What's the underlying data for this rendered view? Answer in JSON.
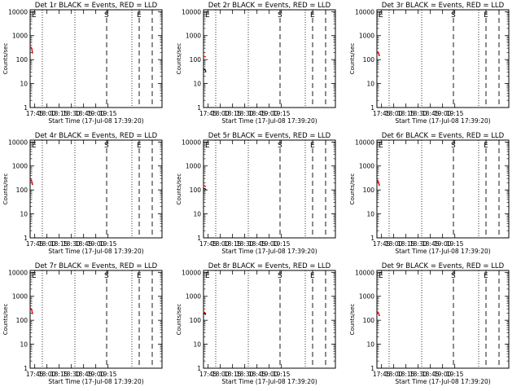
{
  "chart_data": [
    {
      "type": "line",
      "title": "Det 1r BLACK = Events, RED = LLD",
      "xlabel": "Start Time (17-Jul-08 17:39:20)",
      "ylabel": "Counts/sec",
      "xticks": [
        "17:45",
        "18:00",
        "18:15",
        "18:30",
        "18:45",
        "19:00",
        "19:15"
      ],
      "yticks": [
        "1",
        "10",
        "100",
        "1000",
        "10000"
      ],
      "y_scale": "log",
      "ylim": [
        1,
        12000
      ],
      "markers": [
        {
          "label": "S",
          "minute": 94
        },
        {
          "label": "E",
          "minute": 134
        }
      ],
      "series": [
        {
          "name": "Events",
          "color": "#000000",
          "x": [
            0,
            1,
            2,
            3
          ],
          "y": [
            300,
            320,
            290,
            180
          ]
        },
        {
          "name": "LLD",
          "color": "#ff0000",
          "x": [
            0,
            1,
            2,
            3
          ],
          "y": [
            310,
            330,
            300,
            190
          ]
        }
      ]
    },
    {
      "type": "line",
      "title": "Det 2r BLACK = Events, RED = LLD",
      "xlabel": "Start Time (17-Jul-08 17:39:20)",
      "ylabel": "Counts/sec",
      "xticks": [
        "17:45",
        "18:00",
        "18:15",
        "18:30",
        "18:45",
        "19:00",
        "19:15"
      ],
      "yticks": [
        "1",
        "10",
        "100",
        "1000",
        "10000"
      ],
      "y_scale": "log",
      "ylim": [
        1,
        12000
      ],
      "markers": [
        {
          "label": "S",
          "minute": 94
        },
        {
          "label": "E",
          "minute": 134
        }
      ],
      "series": [
        {
          "name": "Events",
          "color": "#000000",
          "x": [
            0,
            1,
            2,
            3
          ],
          "y": [
            35,
            40,
            38,
            30
          ]
        },
        {
          "name": "LLD",
          "color": "#ff0000",
          "x": [
            0,
            1,
            2,
            3
          ],
          "y": [
            130,
            135,
            132,
            130
          ]
        }
      ]
    },
    {
      "type": "line",
      "title": "Det 3r BLACK = Events, RED = LLD",
      "xlabel": "Start Time (17-Jul-08 17:39:20)",
      "ylabel": "Counts/sec",
      "xticks": [
        "17:45",
        "18:00",
        "18:15",
        "18:30",
        "18:45",
        "19:00",
        "19:15"
      ],
      "yticks": [
        "1",
        "10",
        "100",
        "1000",
        "10000"
      ],
      "y_scale": "log",
      "ylim": [
        1,
        12000
      ],
      "markers": [
        {
          "label": "S",
          "minute": 94
        },
        {
          "label": "E",
          "minute": 134
        }
      ],
      "series": [
        {
          "name": "Events",
          "color": "#000000",
          "x": [
            0,
            1,
            2,
            3
          ],
          "y": [
            190,
            200,
            185,
            140
          ]
        },
        {
          "name": "LLD",
          "color": "#ff0000",
          "x": [
            0,
            1,
            2,
            3
          ],
          "y": [
            200,
            210,
            195,
            150
          ]
        }
      ]
    },
    {
      "type": "line",
      "title": "Det 4r BLACK = Events, RED = LLD",
      "xlabel": "Start Time (17-Jul-08 17:39:20)",
      "ylabel": "Counts/sec",
      "xticks": [
        "17:45",
        "18:00",
        "18:15",
        "18:30",
        "18:45",
        "19:00",
        "19:15"
      ],
      "yticks": [
        "1",
        "10",
        "100",
        "1000",
        "10000"
      ],
      "y_scale": "log",
      "ylim": [
        1,
        12000
      ],
      "markers": [
        {
          "label": "S",
          "minute": 94
        },
        {
          "label": "E",
          "minute": 134
        }
      ],
      "series": [
        {
          "name": "Events",
          "color": "#000000",
          "x": [
            0,
            1,
            2,
            3
          ],
          "y": [
            240,
            260,
            230,
            160
          ]
        },
        {
          "name": "LLD",
          "color": "#ff0000",
          "x": [
            0,
            1,
            2,
            3
          ],
          "y": [
            250,
            270,
            240,
            170
          ]
        }
      ]
    },
    {
      "type": "line",
      "title": "Det 5r BLACK = Events, RED = LLD",
      "xlabel": "Start Time (17-Jul-08 17:39:20)",
      "ylabel": "Counts/sec",
      "xticks": [
        "17:45",
        "18:00",
        "18:15",
        "18:30",
        "18:45",
        "19:00",
        "19:15"
      ],
      "yticks": [
        "1",
        "10",
        "100",
        "1000",
        "10000"
      ],
      "y_scale": "log",
      "ylim": [
        1,
        12000
      ],
      "markers": [
        {
          "label": "S",
          "minute": 94
        },
        {
          "label": "E",
          "minute": 134
        }
      ],
      "series": [
        {
          "name": "Events",
          "color": "#000000",
          "x": [
            0,
            1,
            2,
            3
          ],
          "y": [
            110,
            115,
            112,
            100
          ]
        },
        {
          "name": "LLD",
          "color": "#ff0000",
          "x": [
            0,
            1,
            2,
            3
          ],
          "y": [
            140,
            150,
            145,
            135
          ]
        }
      ]
    },
    {
      "type": "line",
      "title": "Det 6r BLACK = Events, RED = LLD",
      "xlabel": "Start Time (17-Jul-08 17:39:20)",
      "ylabel": "Counts/sec",
      "xticks": [
        "17:45",
        "18:00",
        "18:15",
        "18:30",
        "18:45",
        "19:00",
        "19:15"
      ],
      "yticks": [
        "1",
        "10",
        "100",
        "1000",
        "10000"
      ],
      "y_scale": "log",
      "ylim": [
        1,
        12000
      ],
      "markers": [
        {
          "label": "S",
          "minute": 94
        },
        {
          "label": "E",
          "minute": 134
        }
      ],
      "series": [
        {
          "name": "Events",
          "color": "#000000",
          "x": [
            0,
            1,
            2,
            3
          ],
          "y": [
            220,
            240,
            210,
            150
          ]
        },
        {
          "name": "LLD",
          "color": "#ff0000",
          "x": [
            0,
            1,
            2,
            3
          ],
          "y": [
            230,
            250,
            220,
            160
          ]
        }
      ]
    },
    {
      "type": "line",
      "title": "Det 7r BLACK = Events, RED = LLD",
      "xlabel": "Start Time (17-Jul-08 17:39:20)",
      "ylabel": "Counts/sec",
      "xticks": [
        "17:45",
        "18:00",
        "18:15",
        "18:30",
        "18:45",
        "19:00",
        "19:15"
      ],
      "yticks": [
        "1",
        "10",
        "100",
        "1000",
        "10000"
      ],
      "y_scale": "log",
      "ylim": [
        1,
        12000
      ],
      "markers": [
        {
          "label": "S",
          "minute": 94
        },
        {
          "label": "E",
          "minute": 134
        }
      ],
      "series": [
        {
          "name": "Events",
          "color": "#000000",
          "x": [
            0,
            1,
            2,
            3
          ],
          "y": [
            280,
            300,
            270,
            180
          ]
        },
        {
          "name": "LLD",
          "color": "#ff0000",
          "x": [
            0,
            1,
            2,
            3
          ],
          "y": [
            290,
            310,
            280,
            190
          ]
        }
      ]
    },
    {
      "type": "line",
      "title": "Det 8r BLACK = Events, RED = LLD",
      "xlabel": "Start Time (17-Jul-08 17:39:20)",
      "ylabel": "Counts/sec",
      "xticks": [
        "17:45",
        "18:00",
        "18:15",
        "18:30",
        "18:45",
        "19:00",
        "19:15"
      ],
      "yticks": [
        "1",
        "10",
        "100",
        "1000",
        "10000"
      ],
      "y_scale": "log",
      "ylim": [
        1,
        12000
      ],
      "markers": [
        {
          "label": "S",
          "minute": 94
        },
        {
          "label": "E",
          "minute": 134
        }
      ],
      "series": [
        {
          "name": "Events",
          "color": "#000000",
          "x": [
            0,
            1,
            2,
            3
          ],
          "y": [
            180,
            190,
            185,
            170
          ]
        },
        {
          "name": "LLD",
          "color": "#ff0000",
          "x": [
            0,
            1,
            2,
            3
          ],
          "y": [
            200,
            215,
            205,
            190
          ]
        }
      ]
    },
    {
      "type": "line",
      "title": "Det 9r BLACK = Events, RED = LLD",
      "xlabel": "Start Time (17-Jul-08 17:39:20)",
      "ylabel": "Counts/sec",
      "xticks": [
        "17:45",
        "18:00",
        "18:15",
        "18:30",
        "18:45",
        "19:00",
        "19:15"
      ],
      "yticks": [
        "1",
        "10",
        "100",
        "1000",
        "10000"
      ],
      "y_scale": "log",
      "ylim": [
        1,
        12000
      ],
      "markers": [
        {
          "label": "S",
          "minute": 94
        },
        {
          "label": "E",
          "minute": 134
        }
      ],
      "series": [
        {
          "name": "Events",
          "color": "#000000",
          "x": [
            0,
            1,
            2,
            3
          ],
          "y": [
            200,
            215,
            195,
            150
          ]
        },
        {
          "name": "LLD",
          "color": "#ff0000",
          "x": [
            0,
            1,
            2,
            3
          ],
          "y": [
            210,
            225,
            205,
            160
          ]
        }
      ]
    }
  ]
}
